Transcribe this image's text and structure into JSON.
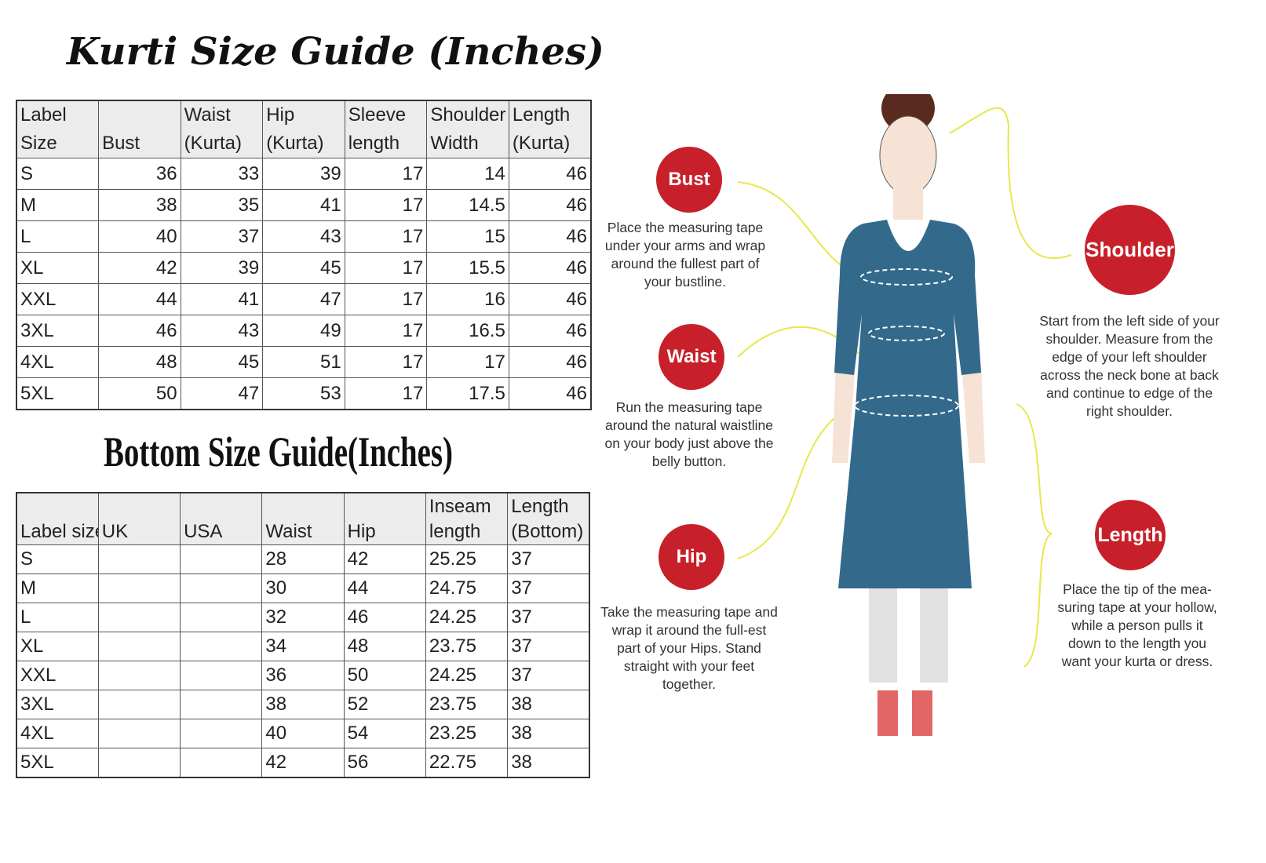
{
  "kurti": {
    "title": "Kurti Size Guide (Inches)",
    "headers": [
      [
        "Label",
        "Size"
      ],
      [
        "",
        "Bust"
      ],
      [
        "Waist",
        "(Kurta)"
      ],
      [
        "Hip",
        "(Kurta)"
      ],
      [
        "Sleeve",
        "length"
      ],
      [
        "Shoulder",
        "Width"
      ],
      [
        "Length",
        "(Kurta)"
      ]
    ],
    "rows": [
      [
        "S",
        "36",
        "33",
        "39",
        "17",
        "14",
        "46"
      ],
      [
        "M",
        "38",
        "35",
        "41",
        "17",
        "14.5",
        "46"
      ],
      [
        "L",
        "40",
        "37",
        "43",
        "17",
        "15",
        "46"
      ],
      [
        "XL",
        "42",
        "39",
        "45",
        "17",
        "15.5",
        "46"
      ],
      [
        "XXL",
        "44",
        "41",
        "47",
        "17",
        "16",
        "46"
      ],
      [
        "3XL",
        "46",
        "43",
        "49",
        "17",
        "16.5",
        "46"
      ],
      [
        "4XL",
        "48",
        "45",
        "51",
        "17",
        "17",
        "46"
      ],
      [
        "5XL",
        "50",
        "47",
        "53",
        "17",
        "17.5",
        "46"
      ]
    ]
  },
  "bottom": {
    "title": "Bottom Size Guide(Inches)",
    "headers": [
      [
        "",
        "Label size"
      ],
      [
        "",
        "UK"
      ],
      [
        "",
        "USA"
      ],
      [
        "",
        "Waist"
      ],
      [
        "",
        "Hip"
      ],
      [
        "Inseam",
        "length"
      ],
      [
        "Length",
        "(Bottom)"
      ]
    ],
    "rows": [
      [
        "S",
        "",
        "",
        "28",
        "42",
        "25.25",
        "37"
      ],
      [
        "M",
        "",
        "",
        "30",
        "44",
        "24.75",
        "37"
      ],
      [
        "L",
        "",
        "",
        "32",
        "46",
        "24.25",
        "37"
      ],
      [
        "XL",
        "",
        "",
        "34",
        "48",
        "23.75",
        "37"
      ],
      [
        "XXL",
        "",
        "",
        "36",
        "50",
        "24.25",
        "37"
      ],
      [
        "3XL",
        "",
        "",
        "38",
        "52",
        "23.75",
        "38"
      ],
      [
        "4XL",
        "",
        "",
        "40",
        "54",
        "23.25",
        "38"
      ],
      [
        "5XL",
        "",
        "",
        "42",
        "56",
        "22.75",
        "38"
      ]
    ]
  },
  "guide": {
    "bust": {
      "label": "Bust",
      "text": "Place the measuring tape under your arms and wrap around the fullest part of your bustline."
    },
    "waist": {
      "label": "Waist",
      "text": "Run the measuring tape around the natural waistline on your body just above the belly button."
    },
    "hip": {
      "label": "Hip",
      "text": "Take the measuring tape and wrap it around the full-est part of your Hips. Stand straight with your feet together."
    },
    "shoulder": {
      "label": "Shoulder",
      "text": "Start from the left side of your shoulder. Measure from the edge of your left shoulder across the neck bone at back and continue to edge of the right shoulder."
    },
    "length": {
      "label": "Length",
      "text": "Place the tip of the mea-suring tape at your hollow, while a person pulls it down to the length you want your kurta or dress."
    }
  },
  "colors": {
    "badge": "#c8202a",
    "kurta": "#336a8c",
    "arrow": "#e6e84a",
    "header_bg": "#ececec"
  }
}
